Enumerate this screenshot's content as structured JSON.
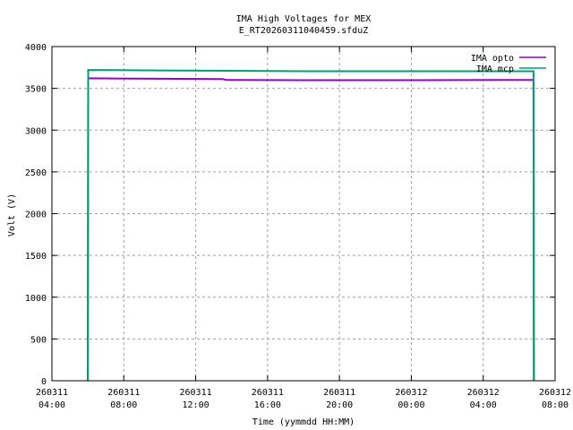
{
  "chart_data": {
    "type": "line",
    "title": "IMA High Voltages for MEX",
    "subtitle": "E_RT20260311040459.sfduZ",
    "xlabel": "Time (yymmdd HH:MM)",
    "ylabel": "Volt (V)",
    "ylim": [
      0,
      4000
    ],
    "yticks": [
      0,
      500,
      1000,
      1500,
      2000,
      2500,
      3000,
      3500,
      4000
    ],
    "xlim_hours": [
      0,
      28
    ],
    "xticks": [
      {
        "hour": 0,
        "date": "260311",
        "time": "04:00"
      },
      {
        "hour": 4,
        "date": "260311",
        "time": "08:00"
      },
      {
        "hour": 8,
        "date": "260311",
        "time": "12:00"
      },
      {
        "hour": 12,
        "date": "260311",
        "time": "16:00"
      },
      {
        "hour": 16,
        "date": "260311",
        "time": "20:00"
      },
      {
        "hour": 20,
        "date": "260312",
        "time": "00:00"
      },
      {
        "hour": 24,
        "date": "260312",
        "time": "04:00"
      },
      {
        "hour": 28,
        "date": "260312",
        "time": "08:00"
      }
    ],
    "grid": true,
    "legend_position": "top-right",
    "series": [
      {
        "name": "IMA opto",
        "color": "#9400d3",
        "points": [
          [
            2.0,
            0
          ],
          [
            2.02,
            3620
          ],
          [
            6.0,
            3615
          ],
          [
            9.5,
            3612
          ],
          [
            9.7,
            3600
          ],
          [
            14.0,
            3598
          ],
          [
            20.0,
            3598
          ],
          [
            25.5,
            3600
          ],
          [
            26.8,
            3600
          ],
          [
            26.82,
            0
          ]
        ]
      },
      {
        "name": "IMA mcp",
        "color": "#009e73",
        "points": [
          [
            2.0,
            0
          ],
          [
            2.02,
            3720
          ],
          [
            6.0,
            3715
          ],
          [
            10.0,
            3710
          ],
          [
            14.0,
            3705
          ],
          [
            20.0,
            3705
          ],
          [
            25.5,
            3705
          ],
          [
            26.8,
            3705
          ],
          [
            26.82,
            0
          ]
        ]
      }
    ]
  }
}
